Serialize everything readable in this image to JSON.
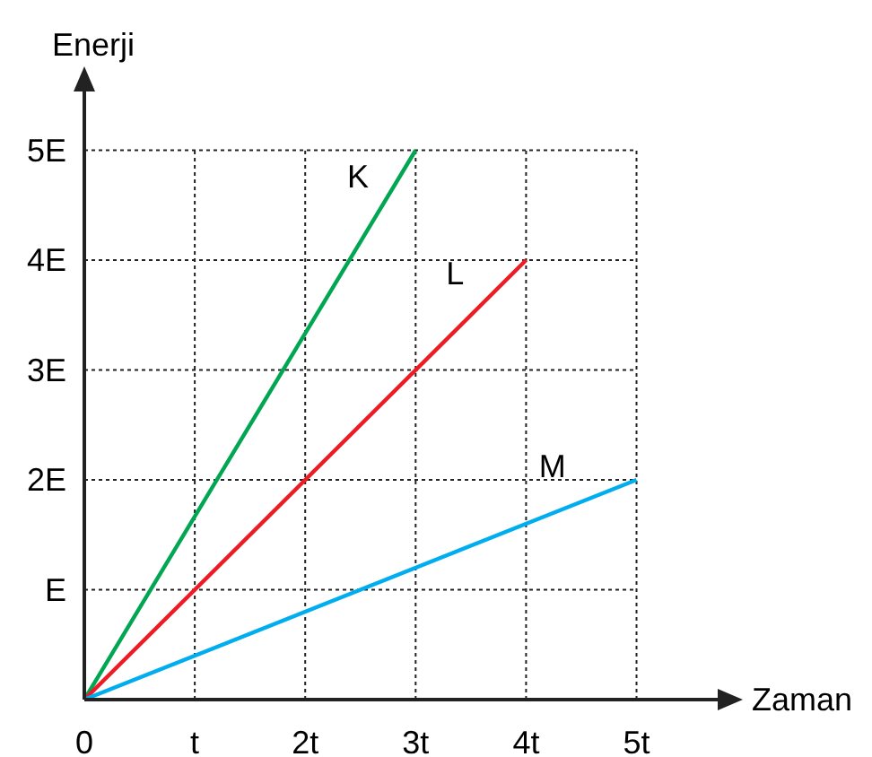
{
  "chart_data": {
    "type": "line",
    "xlabel": "Zaman",
    "ylabel": "Enerji",
    "series": [
      {
        "name": "K",
        "color": "#00a651",
        "x": [
          0,
          3
        ],
        "values": [
          0,
          5
        ]
      },
      {
        "name": "L",
        "color": "#ed1c24",
        "x": [
          0,
          4
        ],
        "values": [
          0,
          4
        ]
      },
      {
        "name": "M",
        "color": "#00aeef",
        "x": [
          0,
          5
        ],
        "values": [
          0,
          2
        ]
      }
    ],
    "xlim": [
      0,
      5.8
    ],
    "ylim": [
      0,
      5.6
    ],
    "xticks": [
      0,
      {
        "value": 1,
        "label": "t"
      },
      {
        "value": 2,
        "label": "2t"
      },
      {
        "value": 3,
        "label": "3t"
      },
      {
        "value": 4,
        "label": "4t"
      },
      {
        "value": 5,
        "label": "5t"
      }
    ],
    "yticks": [
      {
        "value": 0,
        "label": null
      },
      {
        "value": 1,
        "label": "E"
      },
      {
        "value": 2,
        "label": "2E"
      },
      {
        "value": 3,
        "label": "3E"
      },
      {
        "value": 4,
        "label": "4E"
      },
      {
        "value": 5,
        "label": "5E"
      }
    ],
    "grid": true,
    "marker": "none",
    "line_style": "solid"
  }
}
